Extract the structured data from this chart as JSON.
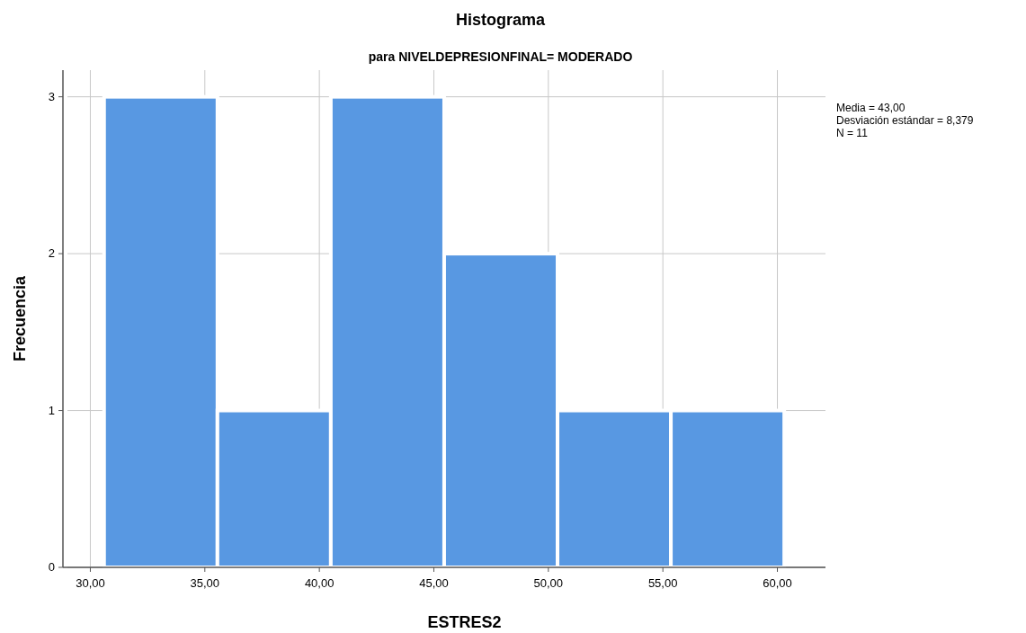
{
  "chart_data": {
    "type": "histogram",
    "title": "Histograma",
    "subtitle": "para NIVELDEPRESIONFINAL= MODERADO",
    "xlabel": "ESTRES2",
    "ylabel": "Frecuencia",
    "bins": [
      30.6,
      35.55,
      40.5,
      45.45,
      50.4,
      55.35,
      60.3
    ],
    "values": [
      3,
      1,
      3,
      2,
      1,
      1
    ],
    "color": "#5898e2",
    "xlim": [
      29,
      62.1
    ],
    "xticks": [
      {
        "value": 30,
        "label": "30,00"
      },
      {
        "value": 35,
        "label": "35,00"
      },
      {
        "value": 40,
        "label": "40,00"
      },
      {
        "value": 45,
        "label": "45,00"
      },
      {
        "value": 50,
        "label": "50,00"
      },
      {
        "value": 55,
        "label": "55,00"
      },
      {
        "value": 60,
        "label": "60,00"
      }
    ],
    "ylim": [
      0,
      3.17
    ],
    "yticks": [
      0,
      1,
      2,
      3
    ],
    "grid": true,
    "annotations": [
      "Media = 43,00",
      "Desviación estándar = 8,379",
      "N = 11"
    ]
  }
}
